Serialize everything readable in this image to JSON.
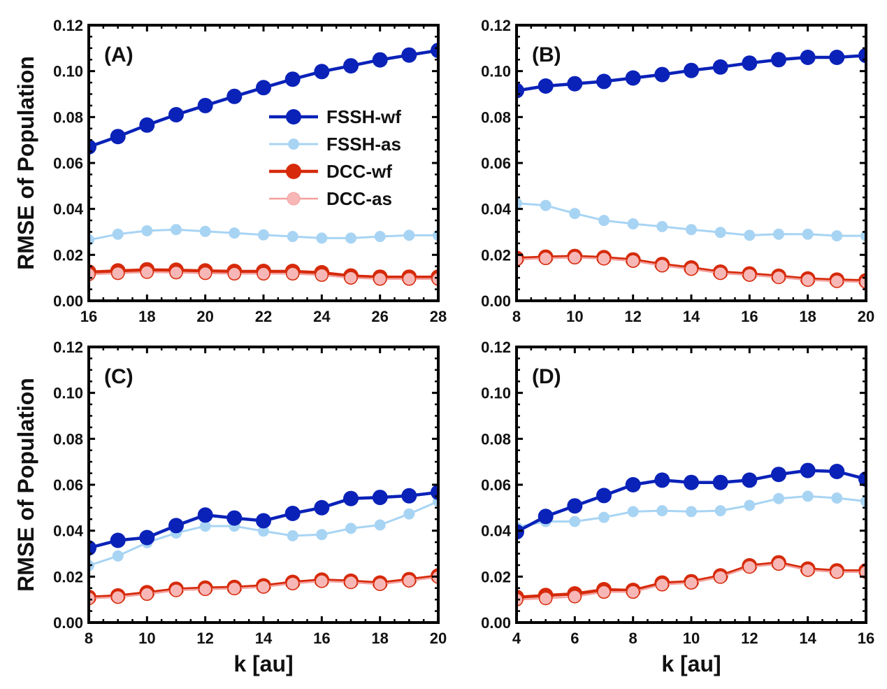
{
  "chart_data": [
    {
      "type": "line",
      "panel_label": "(A)",
      "title": "",
      "xlabel": "",
      "ylabel": "RMSE of Population",
      "xlim": [
        16,
        28
      ],
      "ylim": [
        0,
        0.12
      ],
      "xticks": [
        "16",
        "18",
        "20",
        "22",
        "24",
        "26",
        "28"
      ],
      "yticks": [
        "0.00",
        "0.02",
        "0.04",
        "0.06",
        "0.08",
        "0.10",
        "0.12"
      ],
      "grid": false,
      "legend": "center-right",
      "x": [
        16,
        17,
        18,
        19,
        20,
        21,
        22,
        23,
        24,
        25,
        26,
        27,
        28
      ],
      "series": [
        {
          "name": "FSSH-wf",
          "values": [
            0.067,
            0.0715,
            0.0765,
            0.081,
            0.085,
            0.089,
            0.0928,
            0.0965,
            0.0998,
            0.1023,
            0.1049,
            0.107,
            0.109
          ]
        },
        {
          "name": "FSSH-as",
          "values": [
            0.0265,
            0.029,
            0.0305,
            0.031,
            0.0302,
            0.0295,
            0.0287,
            0.028,
            0.0273,
            0.0273,
            0.028,
            0.0285,
            0.0285
          ]
        },
        {
          "name": "DCC-wf",
          "values": [
            0.0125,
            0.013,
            0.0135,
            0.0133,
            0.013,
            0.0128,
            0.0128,
            0.0128,
            0.0122,
            0.0108,
            0.0103,
            0.0103,
            0.0103
          ]
        },
        {
          "name": "DCC-as",
          "values": [
            0.0115,
            0.012,
            0.0125,
            0.0123,
            0.012,
            0.0118,
            0.0118,
            0.0118,
            0.0112,
            0.01,
            0.0095,
            0.0095,
            0.0095
          ]
        }
      ]
    },
    {
      "type": "line",
      "panel_label": "(B)",
      "title": "",
      "xlabel": "",
      "ylabel": "",
      "xlim": [
        8,
        20
      ],
      "ylim": [
        0,
        0.12
      ],
      "xticks": [
        "8",
        "10",
        "12",
        "14",
        "16",
        "18",
        "20"
      ],
      "yticks": [
        "0.00",
        "0.02",
        "0.04",
        "0.06",
        "0.08",
        "0.10",
        "0.12"
      ],
      "grid": false,
      "x": [
        8,
        9,
        10,
        11,
        12,
        13,
        14,
        15,
        16,
        17,
        18,
        19,
        20
      ],
      "series": [
        {
          "name": "FSSH-wf",
          "values": [
            0.0915,
            0.0935,
            0.0945,
            0.0955,
            0.097,
            0.0985,
            0.1003,
            0.1018,
            0.1035,
            0.105,
            0.106,
            0.106,
            0.1068
          ]
        },
        {
          "name": "FSSH-as",
          "values": [
            0.0425,
            0.0415,
            0.038,
            0.035,
            0.0335,
            0.0323,
            0.031,
            0.0298,
            0.0285,
            0.029,
            0.029,
            0.0283,
            0.0283
          ]
        },
        {
          "name": "DCC-wf",
          "values": [
            0.0185,
            0.019,
            0.0193,
            0.0188,
            0.0178,
            0.0158,
            0.0143,
            0.0125,
            0.0117,
            0.0107,
            0.0095,
            0.009,
            0.0087
          ]
        },
        {
          "name": "DCC-as",
          "values": [
            0.018,
            0.0185,
            0.0188,
            0.0183,
            0.0173,
            0.0153,
            0.0138,
            0.012,
            0.0112,
            0.0102,
            0.009,
            0.0085,
            0.0082
          ]
        }
      ]
    },
    {
      "type": "line",
      "panel_label": "(C)",
      "title": "",
      "xlabel": "k [au]",
      "ylabel": "RMSE of Population",
      "xlim": [
        8,
        20
      ],
      "ylim": [
        0,
        0.12
      ],
      "xticks": [
        "8",
        "10",
        "12",
        "14",
        "16",
        "18",
        "20"
      ],
      "yticks": [
        "0.00",
        "0.02",
        "0.04",
        "0.06",
        "0.08",
        "0.10",
        "0.12"
      ],
      "grid": false,
      "x": [
        8,
        9,
        10,
        11,
        12,
        13,
        14,
        15,
        16,
        17,
        18,
        19,
        20
      ],
      "series": [
        {
          "name": "FSSH-wf",
          "values": [
            0.0325,
            0.0358,
            0.037,
            0.0422,
            0.0468,
            0.0455,
            0.0443,
            0.0475,
            0.05,
            0.054,
            0.0545,
            0.0552,
            0.0567
          ]
        },
        {
          "name": "FSSH-as",
          "values": [
            0.0248,
            0.029,
            0.0348,
            0.039,
            0.042,
            0.042,
            0.0398,
            0.0378,
            0.0383,
            0.041,
            0.0425,
            0.0473,
            0.0528
          ]
        },
        {
          "name": "DCC-wf",
          "values": [
            0.011,
            0.0116,
            0.013,
            0.0145,
            0.015,
            0.0153,
            0.016,
            0.0175,
            0.0185,
            0.018,
            0.0172,
            0.0187,
            0.0203
          ]
        },
        {
          "name": "DCC-as",
          "values": [
            0.0105,
            0.0111,
            0.0124,
            0.014,
            0.0145,
            0.0148,
            0.0155,
            0.017,
            0.018,
            0.0175,
            0.0167,
            0.0182,
            0.0198
          ]
        }
      ]
    },
    {
      "type": "line",
      "panel_label": "(D)",
      "title": "",
      "xlabel": "k [au]",
      "ylabel": "",
      "xlim": [
        4,
        16
      ],
      "ylim": [
        0,
        0.12
      ],
      "xticks": [
        "4",
        "6",
        "8",
        "10",
        "12",
        "14",
        "16"
      ],
      "yticks": [
        "0.00",
        "0.02",
        "0.04",
        "0.06",
        "0.08",
        "0.10",
        "0.12"
      ],
      "grid": false,
      "x": [
        4,
        5,
        6,
        7,
        8,
        9,
        10,
        11,
        12,
        13,
        14,
        15,
        16
      ],
      "series": [
        {
          "name": "FSSH-wf",
          "values": [
            0.0395,
            0.0462,
            0.0508,
            0.0553,
            0.06,
            0.062,
            0.061,
            0.061,
            0.062,
            0.0645,
            0.0662,
            0.0658,
            0.0625
          ]
        },
        {
          "name": "FSSH-as",
          "values": [
            0.0415,
            0.044,
            0.044,
            0.0458,
            0.0483,
            0.0487,
            0.0483,
            0.0487,
            0.051,
            0.054,
            0.055,
            0.0542,
            0.0528
          ]
        },
        {
          "name": "DCC-wf",
          "values": [
            0.011,
            0.0118,
            0.0125,
            0.0143,
            0.014,
            0.0172,
            0.0178,
            0.0203,
            0.0247,
            0.026,
            0.0233,
            0.0225,
            0.0225
          ]
        },
        {
          "name": "DCC-as",
          "values": [
            0.01,
            0.0105,
            0.0113,
            0.0133,
            0.0133,
            0.0165,
            0.0173,
            0.0198,
            0.0242,
            0.0255,
            0.0228,
            0.022,
            0.022
          ]
        }
      ]
    }
  ],
  "legend": [
    {
      "label": "FSSH-wf"
    },
    {
      "label": "FSSH-as"
    },
    {
      "label": "DCC-wf"
    },
    {
      "label": "DCC-as"
    }
  ],
  "series_colors": {
    "FSSH-wf": "#0a22b8",
    "FSSH-as": "#a8d4f4",
    "DCC-wf": "#d62a0a",
    "DCC-as": "#f7b7b6"
  }
}
